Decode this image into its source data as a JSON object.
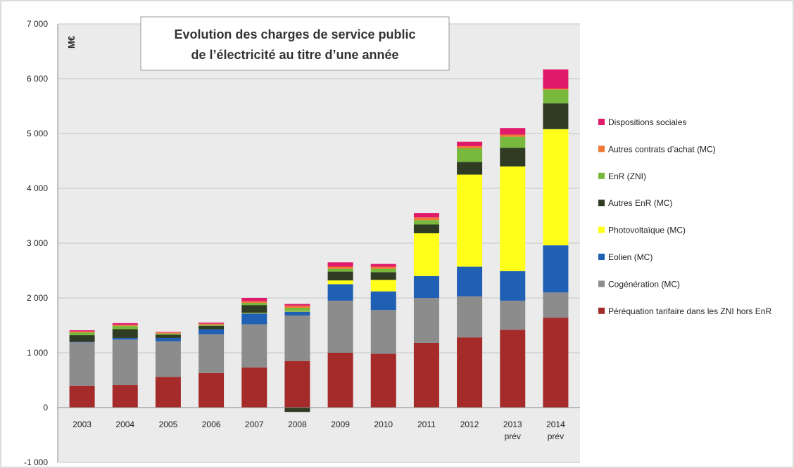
{
  "chart_data": {
    "type": "bar",
    "stacked": true,
    "title": "Evolution des charges de service public de l’électricité au titre d’une année",
    "title_lines": [
      "Evolution des charges de service public",
      "de l’électricité au titre d’une année"
    ],
    "ylabel": "M€",
    "ylim": [
      -1000,
      7000
    ],
    "yticks": [
      -1000,
      0,
      1000,
      2000,
      3000,
      4000,
      5000,
      6000,
      7000
    ],
    "ytick_labels": [
      "-1 000",
      "0",
      "1 000",
      "2 000",
      "3 000",
      "4 000",
      "5 000",
      "6 000",
      "7 000"
    ],
    "grid": true,
    "legend_position": "right",
    "categories": [
      "2003",
      "2004",
      "2005",
      "2006",
      "2007",
      "2008",
      "2009",
      "2010",
      "2011",
      "2012",
      "2013",
      "2014"
    ],
    "category_sublabels": [
      "",
      "",
      "",
      "",
      "",
      "",
      "",
      "",
      "",
      "",
      "prév",
      "prév"
    ],
    "series": [
      {
        "name": "Péréquation tarifaire dans les ZNI hors EnR",
        "color": "#a52a2a",
        "values": [
          400,
          410,
          560,
          630,
          730,
          850,
          1000,
          980,
          1180,
          1280,
          1420,
          1640
        ]
      },
      {
        "name": "Cogénération (MC)",
        "color": "#8c8c8c",
        "values": [
          790,
          830,
          650,
          710,
          790,
          830,
          950,
          800,
          820,
          750,
          530,
          460
        ]
      },
      {
        "name": "Eolien (MC)",
        "color": "#1f5fb4",
        "values": [
          10,
          30,
          60,
          90,
          200,
          70,
          300,
          340,
          400,
          540,
          540,
          860
        ]
      },
      {
        "name": "Photovoltaïque (MC)",
        "color": "#ffff1a",
        "values": [
          0,
          0,
          0,
          0,
          10,
          10,
          70,
          210,
          780,
          1680,
          1910,
          2120
        ]
      },
      {
        "name": "Autres EnR (MC)",
        "color": "#2f3b22",
        "values": [
          120,
          160,
          60,
          60,
          140,
          -80,
          160,
          140,
          160,
          230,
          340,
          470
        ]
      },
      {
        "name": "EnR (ZNI)",
        "color": "#78b83c",
        "values": [
          50,
          60,
          20,
          20,
          40,
          60,
          50,
          60,
          80,
          250,
          200,
          250
        ]
      },
      {
        "name": "Autres contrats d’achat (MC)",
        "color": "#f07838",
        "values": [
          20,
          20,
          20,
          20,
          30,
          40,
          40,
          40,
          50,
          40,
          40,
          20
        ]
      },
      {
        "name": "Dispositions sociales",
        "color": "#e0196b",
        "values": [
          20,
          30,
          10,
          20,
          60,
          30,
          80,
          50,
          80,
          80,
          120,
          350
        ]
      }
    ]
  }
}
